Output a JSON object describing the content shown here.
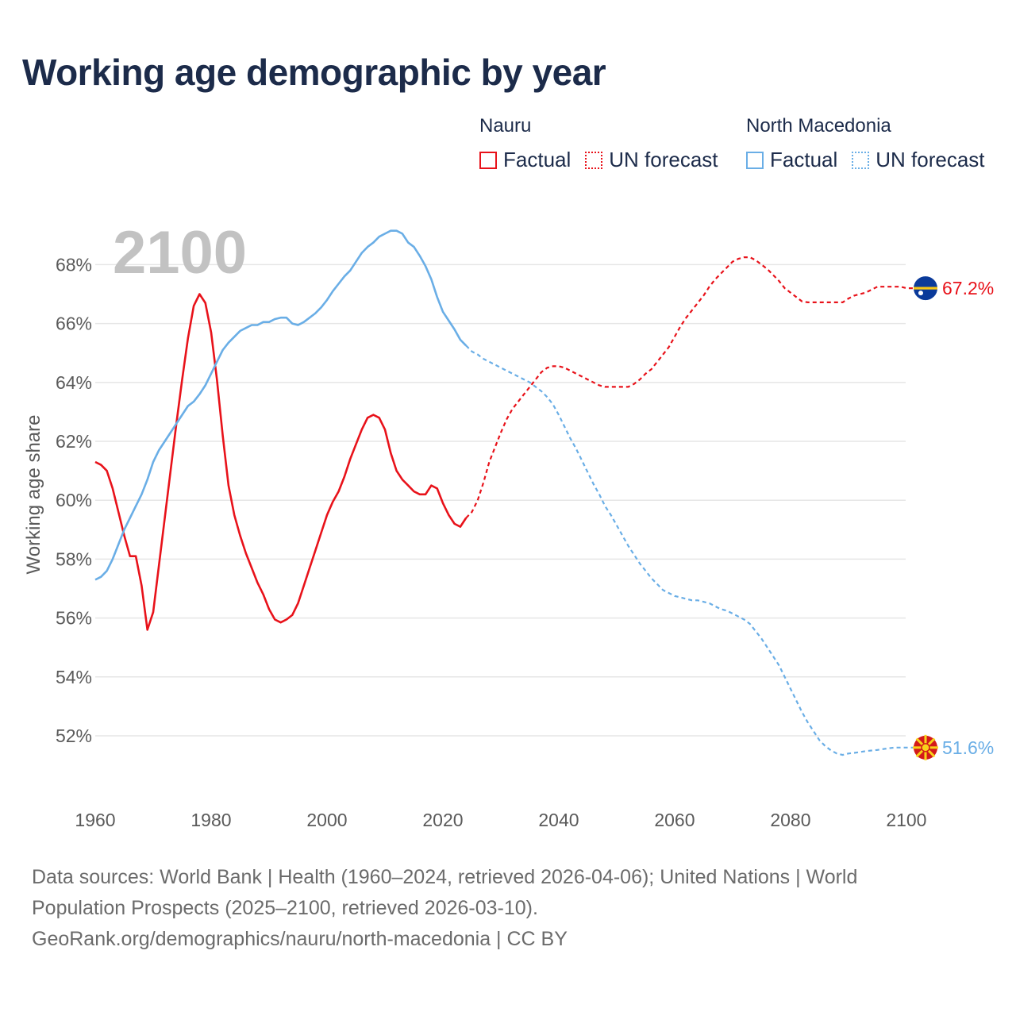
{
  "title": "Working age demographic by year",
  "legend": {
    "groups": [
      {
        "name": "Nauru",
        "color": "#e8121a",
        "factual": "Factual",
        "forecast": "UN forecast"
      },
      {
        "name": "North Macedonia",
        "color": "#6aaee6",
        "factual": "Factual",
        "forecast": "UN forecast"
      }
    ]
  },
  "footer": {
    "line1": "Data sources: World Bank | Health (1960–2024, retrieved 2026-04-06); United Nations | World",
    "line2": "Population Prospects (2025–2100, retrieved 2026-03-10).",
    "line3": "GeoRank.org/demographics/nauru/north-macedonia | CC BY"
  },
  "chart_data": {
    "type": "line",
    "title": "Working age demographic by year",
    "ylabel": "Working age share",
    "xlabel": "",
    "xlim": [
      1960,
      2100
    ],
    "ylim": [
      50,
      69.5
    ],
    "x_ticks": [
      "1960",
      "1980",
      "2000",
      "2020",
      "2040",
      "2060",
      "2080",
      "2100"
    ],
    "y_ticks": [
      "52%",
      "54%",
      "56%",
      "58%",
      "60%",
      "62%",
      "64%",
      "66%",
      "68%"
    ],
    "y_tick_values": [
      52,
      54,
      56,
      58,
      60,
      62,
      64,
      66,
      68
    ],
    "current_year": "2100",
    "series": [
      {
        "name": "Nauru",
        "color": "#e8121a",
        "factual_end": 2024,
        "end_label": "67.2%",
        "flag": "nauru-flag-icon",
        "points": [
          [
            1960,
            61.3
          ],
          [
            1961,
            61.2
          ],
          [
            1962,
            61.0
          ],
          [
            1963,
            60.4
          ],
          [
            1964,
            59.6
          ],
          [
            1965,
            58.8
          ],
          [
            1966,
            58.1
          ],
          [
            1967,
            58.1
          ],
          [
            1968,
            57.1
          ],
          [
            1969,
            55.6
          ],
          [
            1970,
            56.2
          ],
          [
            1971,
            57.8
          ],
          [
            1972,
            59.4
          ],
          [
            1973,
            61.0
          ],
          [
            1974,
            62.6
          ],
          [
            1975,
            64.1
          ],
          [
            1976,
            65.5
          ],
          [
            1977,
            66.6
          ],
          [
            1978,
            67.0
          ],
          [
            1979,
            66.7
          ],
          [
            1980,
            65.7
          ],
          [
            1981,
            64.1
          ],
          [
            1982,
            62.2
          ],
          [
            1983,
            60.5
          ],
          [
            1984,
            59.5
          ],
          [
            1985,
            58.8
          ],
          [
            1986,
            58.2
          ],
          [
            1987,
            57.7
          ],
          [
            1988,
            57.2
          ],
          [
            1989,
            56.8
          ],
          [
            1990,
            56.3
          ],
          [
            1991,
            55.95
          ],
          [
            1992,
            55.85
          ],
          [
            1993,
            55.95
          ],
          [
            1994,
            56.1
          ],
          [
            1995,
            56.5
          ],
          [
            1996,
            57.1
          ],
          [
            1997,
            57.7
          ],
          [
            1998,
            58.3
          ],
          [
            1999,
            58.9
          ],
          [
            2000,
            59.5
          ],
          [
            2001,
            59.95
          ],
          [
            2002,
            60.3
          ],
          [
            2003,
            60.8
          ],
          [
            2004,
            61.4
          ],
          [
            2005,
            61.9
          ],
          [
            2006,
            62.4
          ],
          [
            2007,
            62.8
          ],
          [
            2008,
            62.9
          ],
          [
            2009,
            62.8
          ],
          [
            2010,
            62.4
          ],
          [
            2011,
            61.6
          ],
          [
            2012,
            61.0
          ],
          [
            2013,
            60.7
          ],
          [
            2014,
            60.5
          ],
          [
            2015,
            60.3
          ],
          [
            2016,
            60.2
          ],
          [
            2017,
            60.2
          ],
          [
            2018,
            60.5
          ],
          [
            2019,
            60.4
          ],
          [
            2020,
            59.9
          ],
          [
            2021,
            59.5
          ],
          [
            2022,
            59.2
          ],
          [
            2023,
            59.1
          ],
          [
            2024,
            59.4
          ],
          [
            2025,
            59.6
          ],
          [
            2026,
            60.0
          ],
          [
            2027,
            60.6
          ],
          [
            2028,
            61.3
          ],
          [
            2029,
            61.8
          ],
          [
            2030,
            62.3
          ],
          [
            2031,
            62.75
          ],
          [
            2032,
            63.1
          ],
          [
            2033,
            63.35
          ],
          [
            2034,
            63.6
          ],
          [
            2035,
            63.85
          ],
          [
            2036,
            64.1
          ],
          [
            2037,
            64.35
          ],
          [
            2038,
            64.5
          ],
          [
            2039,
            64.55
          ],
          [
            2040,
            64.55
          ],
          [
            2041,
            64.5
          ],
          [
            2042,
            64.4
          ],
          [
            2043,
            64.3
          ],
          [
            2044,
            64.2
          ],
          [
            2045,
            64.1
          ],
          [
            2046,
            64.0
          ],
          [
            2047,
            63.9
          ],
          [
            2048,
            63.85
          ],
          [
            2049,
            63.85
          ],
          [
            2050,
            63.85
          ],
          [
            2051,
            63.85
          ],
          [
            2052,
            63.85
          ],
          [
            2053,
            63.95
          ],
          [
            2054,
            64.1
          ],
          [
            2055,
            64.3
          ],
          [
            2056,
            64.45
          ],
          [
            2057,
            64.7
          ],
          [
            2058,
            64.95
          ],
          [
            2059,
            65.2
          ],
          [
            2060,
            65.55
          ],
          [
            2061,
            65.9
          ],
          [
            2062,
            66.2
          ],
          [
            2063,
            66.45
          ],
          [
            2064,
            66.7
          ],
          [
            2065,
            66.95
          ],
          [
            2066,
            67.25
          ],
          [
            2067,
            67.5
          ],
          [
            2068,
            67.7
          ],
          [
            2069,
            67.9
          ],
          [
            2070,
            68.1
          ],
          [
            2071,
            68.2
          ],
          [
            2072,
            68.25
          ],
          [
            2073,
            68.25
          ],
          [
            2074,
            68.15
          ],
          [
            2075,
            68.0
          ],
          [
            2076,
            67.85
          ],
          [
            2077,
            67.65
          ],
          [
            2078,
            67.45
          ],
          [
            2079,
            67.2
          ],
          [
            2080,
            67.05
          ],
          [
            2081,
            66.9
          ],
          [
            2082,
            66.75
          ],
          [
            2083,
            66.72
          ],
          [
            2084,
            66.72
          ],
          [
            2085,
            66.72
          ],
          [
            2086,
            66.72
          ],
          [
            2087,
            66.72
          ],
          [
            2088,
            66.72
          ],
          [
            2089,
            66.72
          ],
          [
            2090,
            66.85
          ],
          [
            2091,
            66.95
          ],
          [
            2092,
            67.0
          ],
          [
            2093,
            67.05
          ],
          [
            2094,
            67.15
          ],
          [
            2095,
            67.25
          ],
          [
            2096,
            67.25
          ],
          [
            2097,
            67.25
          ],
          [
            2098,
            67.25
          ],
          [
            2099,
            67.25
          ],
          [
            2100,
            67.2
          ]
        ]
      },
      {
        "name": "North Macedonia",
        "color": "#6aaee6",
        "factual_end": 2024,
        "end_label": "51.6%",
        "flag": "north-macedonia-flag-icon",
        "points": [
          [
            1960,
            57.3
          ],
          [
            1961,
            57.4
          ],
          [
            1962,
            57.6
          ],
          [
            1963,
            58.0
          ],
          [
            1964,
            58.5
          ],
          [
            1965,
            59.0
          ],
          [
            1966,
            59.4
          ],
          [
            1967,
            59.8
          ],
          [
            1968,
            60.2
          ],
          [
            1969,
            60.7
          ],
          [
            1970,
            61.3
          ],
          [
            1971,
            61.7
          ],
          [
            1972,
            62.0
          ],
          [
            1973,
            62.3
          ],
          [
            1974,
            62.6
          ],
          [
            1975,
            62.9
          ],
          [
            1976,
            63.2
          ],
          [
            1977,
            63.35
          ],
          [
            1978,
            63.6
          ],
          [
            1979,
            63.9
          ],
          [
            1980,
            64.3
          ],
          [
            1981,
            64.7
          ],
          [
            1982,
            65.1
          ],
          [
            1983,
            65.35
          ],
          [
            1984,
            65.55
          ],
          [
            1985,
            65.75
          ],
          [
            1986,
            65.85
          ],
          [
            1987,
            65.95
          ],
          [
            1988,
            65.95
          ],
          [
            1989,
            66.05
          ],
          [
            1990,
            66.05
          ],
          [
            1991,
            66.15
          ],
          [
            1992,
            66.2
          ],
          [
            1993,
            66.2
          ],
          [
            1994,
            66.0
          ],
          [
            1995,
            65.95
          ],
          [
            1996,
            66.05
          ],
          [
            1997,
            66.2
          ],
          [
            1998,
            66.35
          ],
          [
            1999,
            66.55
          ],
          [
            2000,
            66.8
          ],
          [
            2001,
            67.1
          ],
          [
            2002,
            67.35
          ],
          [
            2003,
            67.6
          ],
          [
            2004,
            67.8
          ],
          [
            2005,
            68.1
          ],
          [
            2006,
            68.4
          ],
          [
            2007,
            68.6
          ],
          [
            2008,
            68.75
          ],
          [
            2009,
            68.95
          ],
          [
            2010,
            69.05
          ],
          [
            2011,
            69.15
          ],
          [
            2012,
            69.15
          ],
          [
            2013,
            69.05
          ],
          [
            2014,
            68.75
          ],
          [
            2015,
            68.6
          ],
          [
            2016,
            68.3
          ],
          [
            2017,
            67.95
          ],
          [
            2018,
            67.5
          ],
          [
            2019,
            66.9
          ],
          [
            2020,
            66.4
          ],
          [
            2021,
            66.1
          ],
          [
            2022,
            65.8
          ],
          [
            2023,
            65.45
          ],
          [
            2024,
            65.25
          ],
          [
            2025,
            65.05
          ],
          [
            2026,
            64.95
          ],
          [
            2027,
            64.8
          ],
          [
            2028,
            64.7
          ],
          [
            2029,
            64.6
          ],
          [
            2030,
            64.5
          ],
          [
            2031,
            64.4
          ],
          [
            2032,
            64.3
          ],
          [
            2033,
            64.2
          ],
          [
            2034,
            64.1
          ],
          [
            2035,
            64.0
          ],
          [
            2036,
            63.85
          ],
          [
            2037,
            63.7
          ],
          [
            2038,
            63.5
          ],
          [
            2039,
            63.25
          ],
          [
            2040,
            62.9
          ],
          [
            2041,
            62.5
          ],
          [
            2042,
            62.1
          ],
          [
            2043,
            61.75
          ],
          [
            2044,
            61.35
          ],
          [
            2045,
            60.95
          ],
          [
            2046,
            60.55
          ],
          [
            2047,
            60.2
          ],
          [
            2048,
            59.8
          ],
          [
            2049,
            59.5
          ],
          [
            2050,
            59.15
          ],
          [
            2051,
            58.8
          ],
          [
            2052,
            58.45
          ],
          [
            2053,
            58.15
          ],
          [
            2054,
            57.85
          ],
          [
            2055,
            57.6
          ],
          [
            2056,
            57.35
          ],
          [
            2057,
            57.15
          ],
          [
            2058,
            56.95
          ],
          [
            2059,
            56.85
          ],
          [
            2060,
            56.75
          ],
          [
            2061,
            56.7
          ],
          [
            2062,
            56.65
          ],
          [
            2063,
            56.6
          ],
          [
            2064,
            56.6
          ],
          [
            2065,
            56.55
          ],
          [
            2066,
            56.5
          ],
          [
            2067,
            56.4
          ],
          [
            2068,
            56.3
          ],
          [
            2069,
            56.25
          ],
          [
            2070,
            56.15
          ],
          [
            2071,
            56.05
          ],
          [
            2072,
            55.95
          ],
          [
            2073,
            55.8
          ],
          [
            2074,
            55.55
          ],
          [
            2075,
            55.3
          ],
          [
            2076,
            55.0
          ],
          [
            2077,
            54.7
          ],
          [
            2078,
            54.4
          ],
          [
            2079,
            54.0
          ],
          [
            2080,
            53.6
          ],
          [
            2081,
            53.2
          ],
          [
            2082,
            52.8
          ],
          [
            2083,
            52.45
          ],
          [
            2084,
            52.15
          ],
          [
            2085,
            51.85
          ],
          [
            2086,
            51.65
          ],
          [
            2087,
            51.5
          ],
          [
            2088,
            51.4
          ],
          [
            2089,
            51.35
          ],
          [
            2090,
            51.4
          ],
          [
            2091,
            51.42
          ],
          [
            2092,
            51.45
          ],
          [
            2093,
            51.48
          ],
          [
            2094,
            51.5
          ],
          [
            2095,
            51.52
          ],
          [
            2096,
            51.55
          ],
          [
            2097,
            51.58
          ],
          [
            2098,
            51.6
          ],
          [
            2099,
            51.6
          ],
          [
            2100,
            51.6
          ]
        ]
      }
    ]
  }
}
